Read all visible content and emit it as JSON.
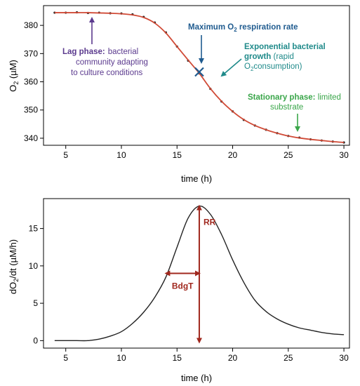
{
  "chart_data": [
    {
      "type": "scatter",
      "xlabel": "time (h)",
      "ylabel": "O2 (µM)",
      "xlim": [
        3,
        30.5
      ],
      "ylim": [
        337.5,
        387
      ],
      "x_ticks": [
        5,
        10,
        15,
        20,
        25,
        30
      ],
      "y_ticks": [
        340,
        350,
        360,
        370,
        380
      ],
      "grid": false,
      "series": [
        {
          "name": "",
          "color": "#222222",
          "style": "points",
          "x": [
            4,
            5,
            6,
            7,
            8,
            9,
            10,
            11,
            12,
            13,
            14,
            15,
            16,
            17,
            18,
            19,
            20,
            21,
            22,
            23,
            24,
            25,
            26,
            27,
            28,
            29,
            30
          ],
          "y": [
            384.5,
            384.5,
            384.6,
            384.4,
            384.5,
            384.3,
            384.2,
            383.9,
            383.0,
            381.0,
            377.5,
            372.5,
            367.5,
            363.0,
            357.5,
            353.0,
            349.5,
            346.5,
            344.5,
            343.0,
            341.8,
            340.8,
            340.2,
            339.6,
            339.2,
            338.8,
            338.5
          ]
        },
        {
          "name": "",
          "color": "#d04a36",
          "style": "line",
          "x": [
            4,
            5,
            6,
            7,
            8,
            9,
            10,
            11,
            12,
            13,
            14,
            15,
            16,
            17,
            18,
            19,
            20,
            21,
            22,
            23,
            24,
            25,
            26,
            27,
            28,
            29,
            30
          ],
          "y": [
            384.5,
            384.5,
            384.5,
            384.5,
            384.4,
            384.3,
            384.1,
            383.7,
            382.8,
            380.8,
            377.3,
            372.5,
            367.7,
            363.0,
            357.6,
            353.1,
            349.5,
            346.6,
            344.5,
            343.0,
            341.8,
            340.8,
            340.1,
            339.6,
            339.2,
            338.8,
            338.5
          ]
        }
      ],
      "marker": {
        "symbol": "X",
        "x": 17,
        "y": 363.5,
        "color": "#1f5b8f"
      },
      "annotations": [
        {
          "id": "lag",
          "bold": "Lag phase:",
          "lines": [
            "bacterial",
            "community adapting",
            "to culture conditions"
          ],
          "color": "#5b3a8e"
        },
        {
          "id": "max",
          "pre": "Maximum O",
          "sub": "2",
          "post": " respiration rate",
          "color": "#1f5b8f"
        },
        {
          "id": "exp",
          "line1": "Exponential bacterial",
          "line2_bold": "growth",
          "line2": " (rapid",
          "line3_pre": "O",
          "line3_sub": "2",
          "line3_post": "consumption)",
          "color": "#1f8a8a"
        },
        {
          "id": "stat",
          "bold": "Stationary phase:",
          "rest": " limited",
          "line2": "substrate",
          "color": "#3aa64a"
        }
      ]
    },
    {
      "type": "line",
      "xlabel": "time (h)",
      "ylabel": "dO2/dt (µM/h)",
      "xlim": [
        3,
        30.5
      ],
      "ylim": [
        -1,
        19
      ],
      "x_ticks": [
        5,
        10,
        15,
        20,
        25,
        30
      ],
      "y_ticks": [
        0,
        5,
        10,
        15
      ],
      "grid": false,
      "series": [
        {
          "name": "",
          "color": "#222222",
          "x": [
            4,
            5,
            6,
            7,
            8,
            9,
            10,
            11,
            12,
            13,
            14,
            15,
            16,
            17,
            18,
            19,
            20,
            21,
            22,
            23,
            24,
            25,
            26,
            27,
            28,
            29,
            30
          ],
          "y": [
            0,
            0,
            0,
            0,
            0.2,
            0.6,
            1.2,
            2.3,
            3.8,
            5.8,
            8.5,
            12.5,
            16.4,
            18.0,
            16.9,
            14.2,
            10.8,
            7.8,
            5.4,
            3.9,
            2.9,
            2.2,
            1.7,
            1.4,
            1.1,
            0.9,
            0.8
          ]
        }
      ],
      "annotations": [
        {
          "id": "rr",
          "label": "RR",
          "x": 17,
          "y_from": -0.2,
          "y_to": 18.0,
          "color": "#a0281e"
        },
        {
          "id": "bdgt",
          "label": "BdgT",
          "x_from": 14,
          "x_to": 17,
          "y": 9.0,
          "color": "#a0281e"
        }
      ]
    }
  ]
}
